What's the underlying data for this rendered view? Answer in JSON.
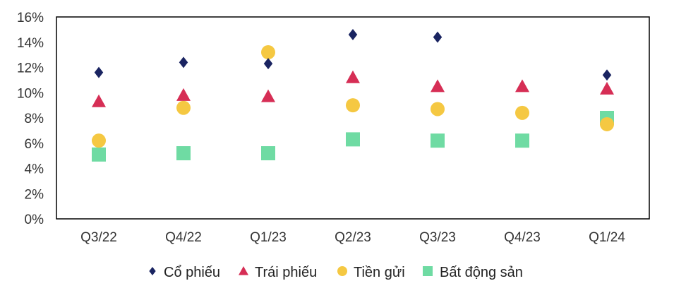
{
  "chart_data": {
    "type": "scatter",
    "title": "",
    "xlabel": "",
    "ylabel": "",
    "categories": [
      "Q3/22",
      "Q4/22",
      "Q1/23",
      "Q2/23",
      "Q3/23",
      "Q4/23",
      "Q1/24"
    ],
    "ylim": [
      0,
      16
    ],
    "yticks": [
      "0%",
      "2%",
      "4%",
      "6%",
      "8%",
      "10%",
      "12%",
      "14%",
      "16%"
    ],
    "grid": false,
    "legend_position": "bottom",
    "series": [
      {
        "name": "Cổ phiếu",
        "marker": "diamond",
        "color": "#1a2461",
        "values": [
          11.6,
          12.4,
          12.3,
          14.6,
          14.4,
          null,
          11.4
        ]
      },
      {
        "name": "Trái phiếu",
        "marker": "triangle",
        "color": "#d62e55",
        "values": [
          9.3,
          9.8,
          9.7,
          11.2,
          10.5,
          10.5,
          10.3
        ]
      },
      {
        "name": "Tiền gửi",
        "marker": "circle",
        "color": "#f5c842",
        "values": [
          6.2,
          8.8,
          13.2,
          9.0,
          8.7,
          8.4,
          7.5
        ]
      },
      {
        "name": "Bất động sản",
        "marker": "square",
        "color": "#6fdba3",
        "values": [
          5.1,
          5.2,
          5.2,
          6.3,
          6.2,
          6.2,
          8.0
        ]
      }
    ]
  }
}
